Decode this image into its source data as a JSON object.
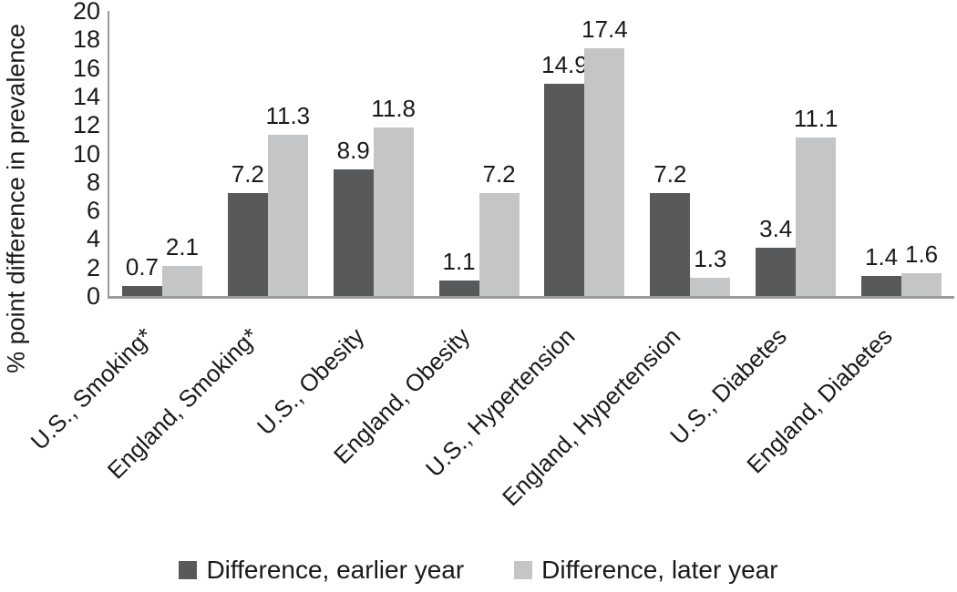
{
  "chart_data": {
    "type": "bar",
    "title": "",
    "ylabel": "% point difference in prevalence",
    "xlabel": "",
    "ylim": [
      0,
      20
    ],
    "ytick_interval": 2,
    "grid": false,
    "legend_position": "bottom",
    "value_labels": true,
    "categories": [
      "U.S., Smoking*",
      "England, Smoking*",
      "U.S., Obesity",
      "England, Obesity",
      "U.S., Hypertension",
      "England, Hypertension",
      "U.S., Diabetes",
      "England, Diabetes"
    ],
    "series": [
      {
        "name": "Difference, earlier year",
        "color": "#58595b",
        "values": [
          0.7,
          7.2,
          8.9,
          1.1,
          14.9,
          7.2,
          3.4,
          1.4
        ]
      },
      {
        "name": "Difference, later year",
        "color": "#c4c5c7",
        "values": [
          2.1,
          11.3,
          11.8,
          7.2,
          17.4,
          1.3,
          11.1,
          1.6
        ]
      }
    ]
  },
  "style": {
    "axis_color": "#9a9ca0",
    "text_color": "#1a1a1a",
    "background": "#ffffff"
  }
}
